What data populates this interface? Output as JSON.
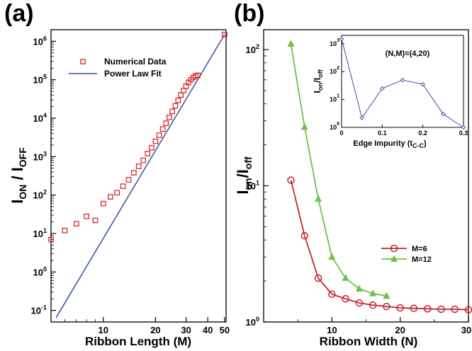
{
  "chart_data": [
    {
      "panel_label": "(a)",
      "type": "scatter",
      "xlabel": "Ribbon Length (M)",
      "ylabel_main": "I",
      "ylabel_sub1": "ON",
      "ylabel_sep": " / I",
      "ylabel_sub2": "OFF",
      "x_scale": "log",
      "y_scale": "log",
      "xlim": [
        5,
        51
      ],
      "ylim": [
        0.05,
        2000000
      ],
      "x_ticks": [
        {
          "value": 10,
          "label": "10"
        },
        {
          "value": 20,
          "label": "20"
        },
        {
          "value": 30,
          "label": "30"
        },
        {
          "value": 40,
          "label": "40"
        },
        {
          "value": 50,
          "label": "50"
        }
      ],
      "y_ticks": [
        {
          "value": 0.1,
          "base": "10",
          "exp": "-1"
        },
        {
          "value": 1,
          "base": "10",
          "exp": "0"
        },
        {
          "value": 10,
          "base": "10",
          "exp": "1"
        },
        {
          "value": 100,
          "base": "10",
          "exp": "2"
        },
        {
          "value": 1000,
          "base": "10",
          "exp": "3"
        },
        {
          "value": 10000,
          "base": "10",
          "exp": "4"
        },
        {
          "value": 100000,
          "base": "10",
          "exp": "5"
        },
        {
          "value": 1000000,
          "base": "10",
          "exp": "6"
        }
      ],
      "legend": [
        {
          "label": "Numerical Data",
          "marker": "square",
          "color": "#d42b2b"
        },
        {
          "label": "Power Law Fit",
          "marker": "line",
          "color": "#3a4f9e"
        }
      ],
      "series": [
        {
          "name": "Numerical Data",
          "color": "#d42b2b",
          "marker": "square",
          "x": [
            5,
            6,
            7,
            8,
            9,
            10,
            11,
            12,
            13,
            14,
            15,
            16,
            17,
            18,
            19,
            20,
            21,
            22,
            23,
            24,
            25,
            26,
            27,
            28,
            29,
            30,
            31,
            32,
            33,
            34,
            35,
            50
          ],
          "y": [
            7,
            12,
            18,
            28,
            22,
            60,
            90,
            115,
            170,
            250,
            380,
            560,
            800,
            1200,
            1700,
            2500,
            3600,
            5200,
            7400,
            10500,
            15000,
            21000,
            29000,
            40000,
            52000,
            68000,
            85000,
            100000,
            115000,
            125000,
            130000,
            1500000
          ]
        },
        {
          "name": "Power Law Fit",
          "color": "#3a4f9e",
          "marker": "line",
          "x": [
            5.35,
            50
          ],
          "y": [
            0.065,
            1500000
          ]
        }
      ]
    },
    {
      "panel_label": "(b)",
      "type": "line",
      "xlabel": "Ribbon Width (N)",
      "ylabel_main": "I",
      "ylabel_sub1": "on",
      "ylabel_sep": "/I",
      "ylabel_sub2": "off",
      "x_scale": "linear",
      "y_scale": "log",
      "xlim": [
        0,
        30
      ],
      "ylim": [
        1,
        140
      ],
      "x_ticks": [
        {
          "value": 10,
          "label": "10"
        },
        {
          "value": 20,
          "label": "20"
        },
        {
          "value": 30,
          "label": "30"
        }
      ],
      "y_ticks": [
        {
          "value": 1,
          "base": "10",
          "exp": "0"
        },
        {
          "value": 10,
          "base": "10",
          "exp": "1"
        },
        {
          "value": 100,
          "base": "10",
          "exp": "2"
        }
      ],
      "legend": [
        {
          "label": "M=6",
          "marker": "circle",
          "color": "#c0282d"
        },
        {
          "label": "M=12",
          "marker": "triangle",
          "color": "#6cc24a"
        }
      ],
      "series": [
        {
          "name": "M=6",
          "color": "#c0282d",
          "marker": "circle",
          "x": [
            4,
            6,
            8,
            10,
            12,
            14,
            16,
            18,
            20,
            22,
            24,
            26,
            28,
            30
          ],
          "y": [
            11,
            4.3,
            2.1,
            1.6,
            1.48,
            1.38,
            1.33,
            1.3,
            1.27,
            1.26,
            1.25,
            1.24,
            1.24,
            1.23
          ]
        },
        {
          "name": "M=12",
          "color": "#6cc24a",
          "marker": "triangle",
          "x": [
            4,
            6,
            8,
            10,
            12,
            14,
            16,
            18
          ],
          "y": [
            110,
            27,
            8,
            3,
            2.1,
            1.75,
            1.62,
            1.55
          ]
        }
      ],
      "inset": {
        "type": "line",
        "annotation": "(N,M)=(4,20)",
        "xlabel_main": "Edge Impurity (t",
        "xlabel_sub": "C-C",
        "xlabel_end": ")",
        "ylabel_main": "I",
        "ylabel_sub1": "on",
        "ylabel_sep": "/I",
        "ylabel_sub2": "off",
        "x_scale": "linear",
        "y_scale": "log",
        "xlim": [
          0,
          0.3
        ],
        "ylim": [
          1,
          2000
        ],
        "x_ticks": [
          {
            "value": 0,
            "label": "0"
          },
          {
            "value": 0.1,
            "label": "0.1"
          },
          {
            "value": 0.2,
            "label": "0.2"
          },
          {
            "value": 0.3,
            "label": "0.3"
          }
        ],
        "y_ticks": [
          {
            "value": 1,
            "base": "10",
            "exp": "0"
          },
          {
            "value": 10,
            "base": "10",
            "exp": "1"
          },
          {
            "value": 100,
            "base": "10",
            "exp": "2"
          },
          {
            "value": 1000,
            "base": "10",
            "exp": "3"
          }
        ],
        "series": [
          {
            "color": "#3a4f9e",
            "marker": "diamond",
            "x": [
              0,
              0.05,
              0.1,
              0.15,
              0.2,
              0.25,
              0.3
            ],
            "y": [
              1500,
              2.2,
              25,
              50,
              35,
              3,
              1
            ]
          }
        ]
      }
    }
  ]
}
